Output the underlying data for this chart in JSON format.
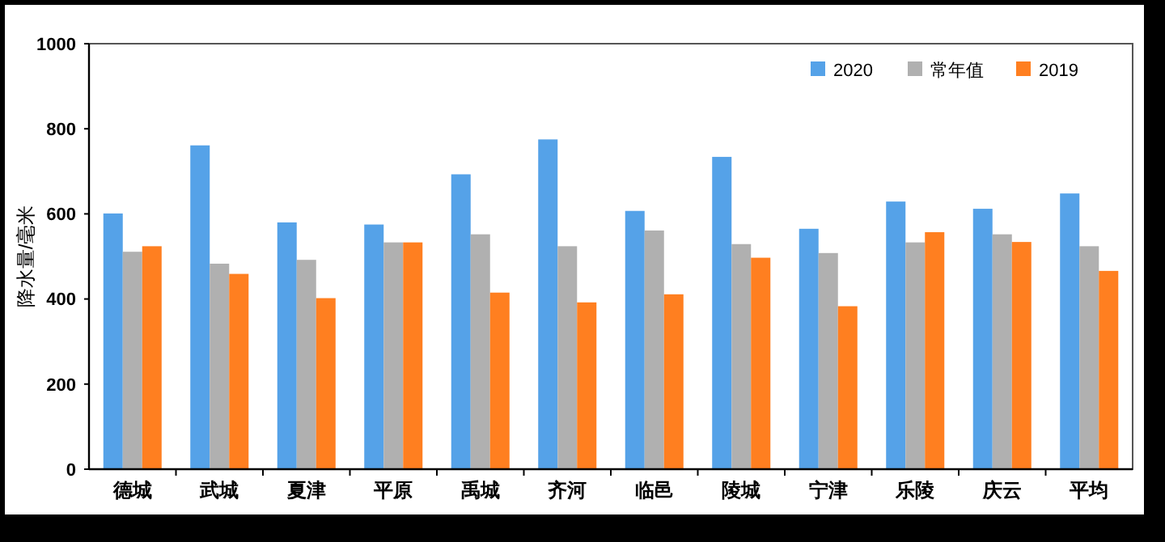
{
  "chart_data": {
    "type": "bar",
    "ylabel": "降水量/毫米",
    "categories": [
      "德城",
      "武城",
      "夏津",
      "平原",
      "禹城",
      "齐河",
      "临邑",
      "陵城",
      "宁津",
      "乐陵",
      "庆云",
      "平均"
    ],
    "series": [
      {
        "name": "2020",
        "color": "#55a2e8",
        "values": [
          601,
          761,
          580,
          575,
          693,
          775,
          607,
          734,
          565,
          629,
          612,
          648
        ]
      },
      {
        "name": "常年值",
        "color": "#b0b0b0",
        "values": [
          511,
          483,
          492,
          533,
          552,
          524,
          561,
          529,
          508,
          533,
          552,
          524
        ]
      },
      {
        "name": "2019",
        "color": "#ff7f20",
        "values": [
          524,
          459,
          402,
          533,
          415,
          392,
          411,
          497,
          383,
          557,
          534,
          466
        ]
      }
    ],
    "ylim": [
      0,
      1000
    ],
    "yticks": [
      0,
      200,
      400,
      600,
      800,
      1000
    ],
    "grid": false,
    "legend": "top right"
  }
}
